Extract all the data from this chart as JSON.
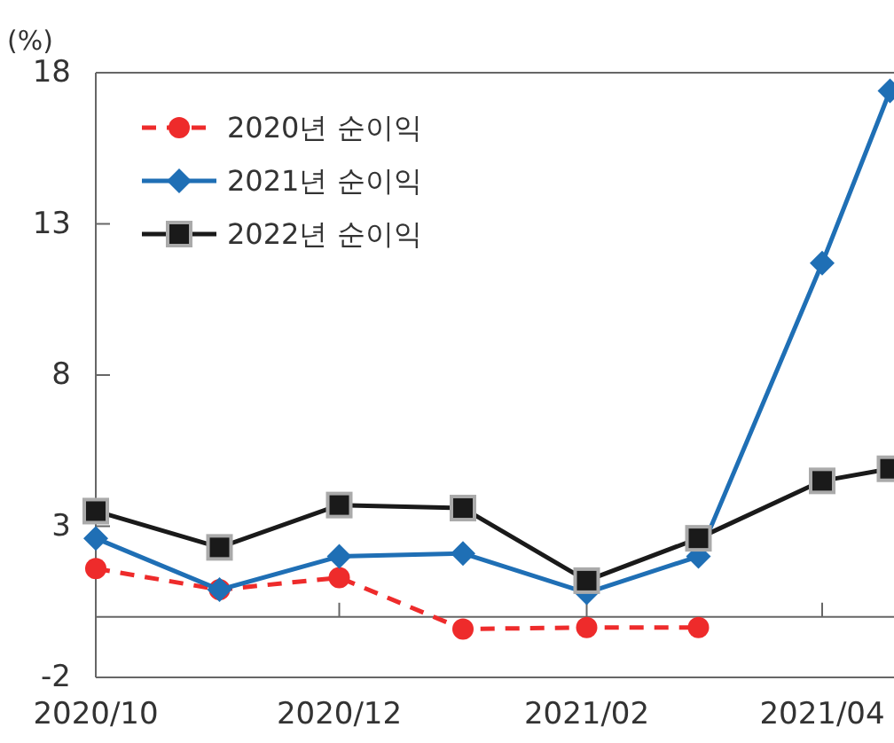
{
  "chart_data": {
    "type": "line",
    "ylabel": "(%)",
    "x": [
      "2020-10-01",
      "2020-11-01",
      "2020-12-01",
      "2021-01-01",
      "2021-02-01",
      "2021-03-01",
      "2021-04-01",
      "2021-04-18"
    ],
    "series": [
      {
        "name": "2020년 순이익",
        "color": "#ee2b2b",
        "marker": "circle",
        "line_style": "dashed",
        "values": [
          1.6,
          0.9,
          1.3,
          -0.4,
          -0.35,
          -0.35,
          null,
          null
        ]
      },
      {
        "name": "2021년 순이익",
        "color": "#1f6fb5",
        "marker": "diamond",
        "line_style": "solid",
        "values": [
          2.6,
          0.9,
          2.0,
          2.1,
          0.8,
          2.0,
          11.7,
          17.4
        ]
      },
      {
        "name": "2022년 순이익",
        "color": "#1a1a1a",
        "marker": "square",
        "line_style": "solid",
        "values": [
          3.5,
          2.3,
          3.7,
          3.6,
          1.2,
          2.6,
          4.5,
          4.9
        ]
      }
    ],
    "xlim": [
      "2020-10-01",
      "2021-04-19"
    ],
    "xticks": [
      {
        "value": "2020-10-01",
        "label": "2020/10"
      },
      {
        "value": "2020-12-01",
        "label": "2020/12"
      },
      {
        "value": "2021-02-01",
        "label": "2021/02"
      },
      {
        "value": "2021-04-01",
        "label": "2021/04"
      }
    ],
    "ylim": [
      -2,
      18
    ],
    "yticks": [
      -2,
      3,
      8,
      13,
      18
    ],
    "grid": false,
    "legend": "top left"
  }
}
